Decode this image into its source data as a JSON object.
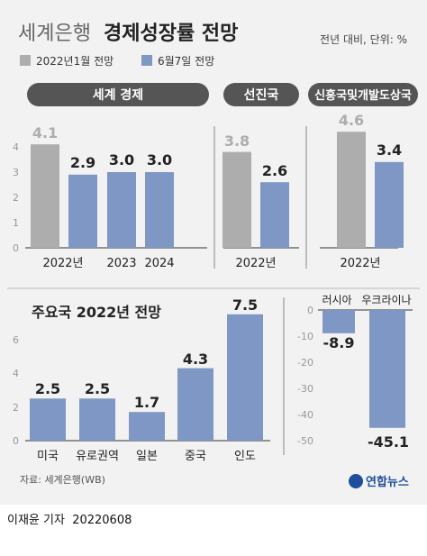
{
  "header": {
    "title_light": "세계은행",
    "title_bold": "경제성장률 전망",
    "unit": "전년 대비, 단위: %"
  },
  "legend": [
    {
      "label": "2022년1월 전망",
      "color": "#adadad"
    },
    {
      "label": "6월7일 전망",
      "color": "#7e97c5"
    }
  ],
  "source": "자료: 세계은행(WB)",
  "logo_text": "연합뉴스",
  "credit": {
    "author": "이재윤 기자",
    "date": "20220608"
  },
  "chart_data": [
    {
      "type": "bar",
      "title": "세계 경제",
      "ylim": [
        0,
        4.5
      ],
      "yticks": [
        0,
        1,
        2,
        3,
        4
      ],
      "groups": [
        {
          "label": "2022년",
          "bars": [
            {
              "series": "2022년1월 전망",
              "value": 4.1
            },
            {
              "series": "6월7일 전망",
              "value": 2.9
            }
          ]
        },
        {
          "label": "2023",
          "bars": [
            {
              "series": "6월7일 전망",
              "value": 3.0
            }
          ]
        },
        {
          "label": "2024",
          "bars": [
            {
              "series": "6월7일 전망",
              "value": 3.0
            }
          ]
        }
      ]
    },
    {
      "type": "bar",
      "title": "선진국",
      "ylim": [
        0,
        4.5
      ],
      "groups": [
        {
          "label": "2022년",
          "bars": [
            {
              "series": "2022년1월 전망",
              "value": 3.8
            },
            {
              "series": "6월7일 전망",
              "value": 2.6
            }
          ]
        }
      ]
    },
    {
      "type": "bar",
      "title": "신흥국및개발도상국",
      "ylim": [
        0,
        4.5
      ],
      "groups": [
        {
          "label": "2022년",
          "bars": [
            {
              "series": "2022년1월 전망",
              "value": 4.6
            },
            {
              "series": "6월7일 전망",
              "value": 3.4
            }
          ]
        }
      ]
    },
    {
      "type": "bar",
      "title": "주요국 2022년 전망",
      "ylim": [
        0,
        8
      ],
      "yticks": [
        0,
        2,
        4,
        6
      ],
      "categories": [
        "미국",
        "유로권역",
        "일본",
        "중국",
        "인도"
      ],
      "values": [
        2.5,
        2.5,
        1.7,
        4.3,
        7.5
      ]
    },
    {
      "type": "bar",
      "ylim": [
        -50,
        0
      ],
      "yticks": [
        0,
        -10,
        -20,
        -30,
        -40,
        -50
      ],
      "categories": [
        "러시아",
        "우크라이나"
      ],
      "values": [
        -8.9,
        -45.1
      ]
    }
  ]
}
